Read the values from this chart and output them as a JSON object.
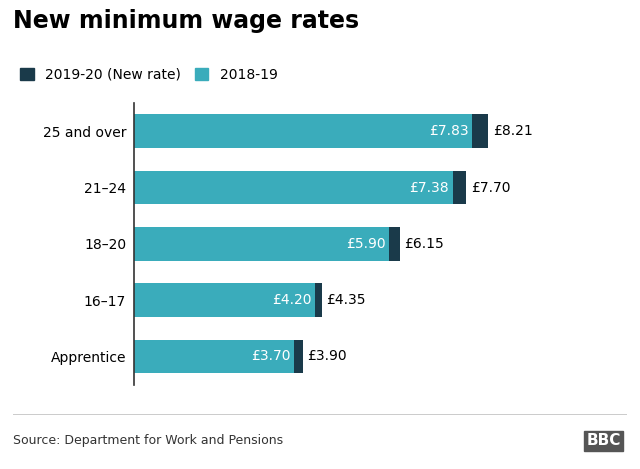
{
  "title": "New minimum wage rates",
  "categories": [
    "25 and over",
    "21–24",
    "18–20",
    "16–17",
    "Apprentice"
  ],
  "values_2018": [
    7.83,
    7.38,
    5.9,
    4.2,
    3.7
  ],
  "values_2019": [
    8.21,
    7.7,
    6.15,
    4.35,
    3.9
  ],
  "labels_2018": [
    "£7.83",
    "£7.38",
    "£5.90",
    "£4.20",
    "£3.70"
  ],
  "labels_2019": [
    "£8.21",
    "£7.70",
    "£6.15",
    "£4.35",
    "£3.90"
  ],
  "color_2018": "#3AACBB",
  "color_2019": "#1A3A4A",
  "legend_2019": "2019-20 (New rate)",
  "legend_2018": "2018-19",
  "source": "Source: Department for Work and Pensions",
  "xlim": [
    0,
    9.5
  ],
  "bar_height": 0.6,
  "background_color": "#ffffff",
  "title_fontsize": 17,
  "label_fontsize": 10,
  "tick_fontsize": 10,
  "legend_fontsize": 10,
  "source_fontsize": 9,
  "bbc_text": "BBC"
}
